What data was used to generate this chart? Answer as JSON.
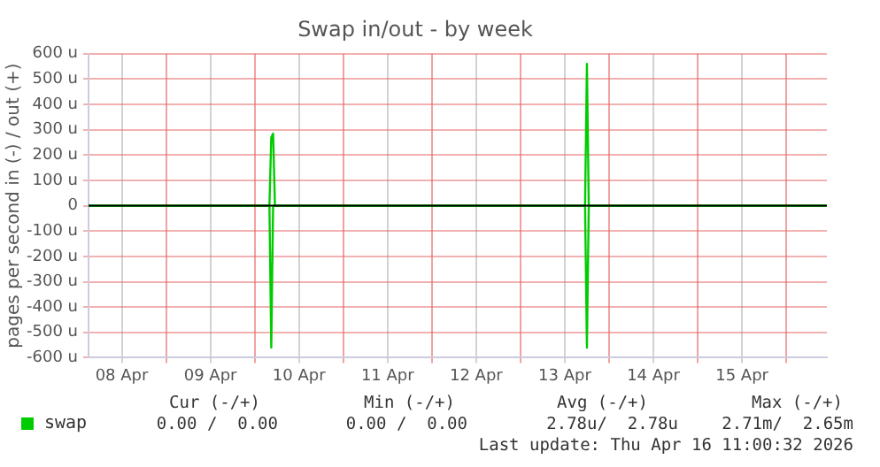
{
  "chart_data": {
    "type": "line",
    "title": "Swap in/out - by week",
    "ylabel": "pages per second in (-) / out (+)",
    "xlim": [
      "2026-04-08T03:00",
      "2026-04-16T11:00"
    ],
    "xticks": [
      {
        "value": "2026-04-08T12:00",
        "label": "08 Apr"
      },
      {
        "value": "2026-04-09T12:00",
        "label": "09 Apr"
      },
      {
        "value": "2026-04-10T12:00",
        "label": "10 Apr"
      },
      {
        "value": "2026-04-11T12:00",
        "label": "11 Apr"
      },
      {
        "value": "2026-04-12T12:00",
        "label": "12 Apr"
      },
      {
        "value": "2026-04-13T12:00",
        "label": "13 Apr"
      },
      {
        "value": "2026-04-14T12:00",
        "label": "14 Apr"
      },
      {
        "value": "2026-04-15T12:00",
        "label": "15 Apr"
      },
      {
        "value": "2026-04-09T00:00",
        "label": null
      },
      {
        "value": "2026-04-10T00:00",
        "label": null
      },
      {
        "value": "2026-04-11T00:00",
        "label": null
      },
      {
        "value": "2026-04-12T00:00",
        "label": null
      },
      {
        "value": "2026-04-13T00:00",
        "label": null
      },
      {
        "value": "2026-04-14T00:00",
        "label": null
      },
      {
        "value": "2026-04-15T00:00",
        "label": null
      },
      {
        "value": "2026-04-16T00:00",
        "label": null
      }
    ],
    "ylim": [
      -600,
      600
    ],
    "yticks": [
      {
        "value": -600,
        "label": "-600 u"
      },
      {
        "value": -500,
        "label": "-500 u"
      },
      {
        "value": -400,
        "label": "-400 u"
      },
      {
        "value": -300,
        "label": "-300 u"
      },
      {
        "value": -200,
        "label": "-200 u"
      },
      {
        "value": -100,
        "label": "-100 u"
      },
      0,
      {
        "value": 100,
        "label": "100 u"
      },
      {
        "value": 200,
        "label": "200 u"
      },
      {
        "value": 300,
        "label": "300 u"
      },
      {
        "value": 400,
        "label": "400 u"
      },
      {
        "value": 500,
        "label": "500 u"
      },
      {
        "value": 600,
        "label": "600 u"
      }
    ],
    "grid": true,
    "legend": "bottom left",
    "marker": "none",
    "line_style": "solid",
    "ref_lines": [
      {
        "axis": "y",
        "value": 0,
        "color": "#000000"
      }
    ],
    "series": [
      {
        "name": "swap",
        "color": "#00cc00",
        "x": [
          "2026-04-08T03:00",
          "2026-04-10T04:00",
          "2026-04-10T04:30",
          "2026-04-10T05:00",
          "2026-04-10T05:30",
          "2026-04-13T17:30",
          "2026-04-13T18:00",
          "2026-04-13T18:30",
          "2026-04-16T11:00"
        ],
        "values": [
          0,
          0,
          270,
          285,
          0,
          0,
          560,
          0,
          0
        ]
      },
      {
        "color": "#00cc00",
        "x": [
          "2026-04-08T03:00",
          "2026-04-10T04:00",
          "2026-04-10T04:30",
          "2026-04-10T05:00",
          "2026-04-13T17:30",
          "2026-04-13T18:00",
          "2026-04-13T18:30",
          "2026-04-16T11:00"
        ],
        "values": [
          0,
          0,
          -560,
          0,
          0,
          -560,
          0,
          0
        ]
      }
    ],
    "annotations": [
      "Cur (-/+)",
      "Min (-/+)",
      "Avg (-/+)",
      "Max (-/+)",
      "0.00 /  0.00",
      "0.00 /  0.00",
      "2.78u/  2.78u",
      "2.71m/  2.65m",
      "Last update: Thu Apr 16 11:00:32 2026"
    ]
  }
}
